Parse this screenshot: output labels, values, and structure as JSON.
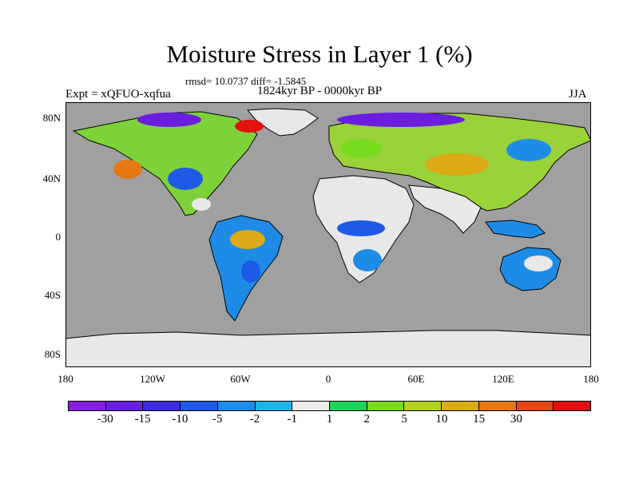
{
  "title": "Moisture Stress in Layer 1 (%)",
  "stats": "rmsd= 10.0737 diff= -1.5845",
  "period": "1824kyr BP - 0000kyr BP",
  "experiment": "Expt = xQFUO-xqfua",
  "season": "JJA",
  "map": {
    "ocean_color": "#a0a0a0",
    "land_neutral_color": "#e8e8e8",
    "y_ticks": [
      "80N",
      "40N",
      "0",
      "40S",
      "80S"
    ],
    "x_ticks": [
      "180",
      "120W",
      "60W",
      "0",
      "60E",
      "120E",
      "180"
    ]
  },
  "colorbar": {
    "colors": [
      "#8a1ee0",
      "#6a1ee0",
      "#3c2ae0",
      "#1e5ae6",
      "#1e8ce6",
      "#1eb4e6",
      "#ececec",
      "#1ed25a",
      "#78dc1e",
      "#b4d21e",
      "#dcaa14",
      "#e67814",
      "#e64614",
      "#e60f0f"
    ],
    "labels": [
      "-30",
      "-15",
      "-10",
      "-5",
      "-2",
      "-1",
      "1",
      "2",
      "5",
      "10",
      "15",
      "30"
    ]
  }
}
